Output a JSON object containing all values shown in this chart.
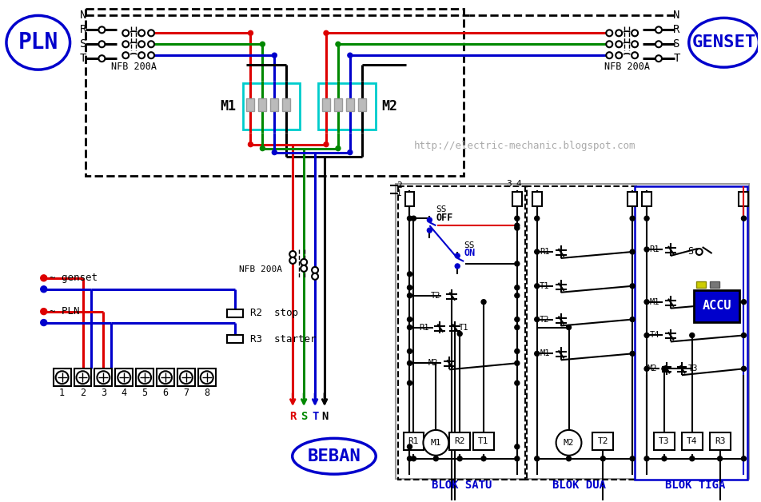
{
  "pln_label": "PLN",
  "genset_label": "GENSET",
  "beban_label": "BEBAN",
  "website": "http://electric-mechanic.blogspot.com",
  "nfb_label": "NFB 200A",
  "m1_label": "M1",
  "m2_label": "M2",
  "blok_satu": "BLOK SATU",
  "blok_dua": "BLOK DUA",
  "blok_tiga": "BLOK TIGA",
  "accu_label": "ACCU",
  "wire_red": "#dd0000",
  "wire_green": "#008800",
  "wire_blue": "#0000cc",
  "wire_black": "#000000",
  "label_blue": "#0000cc",
  "cyan_color": "#00cccc",
  "gray_color": "#999999",
  "gray_fc": "#bbbbbb"
}
